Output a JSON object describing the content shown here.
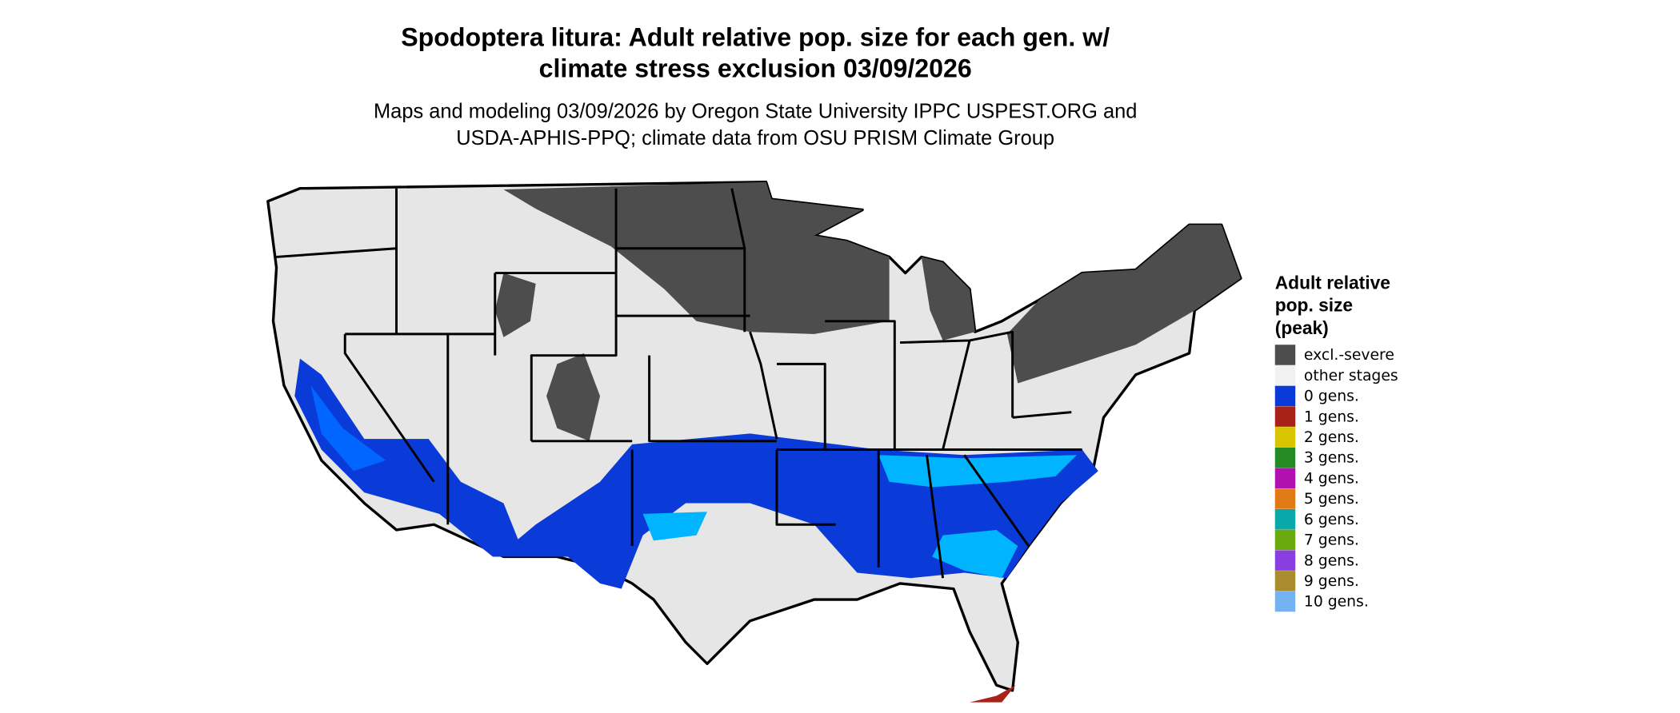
{
  "title": [
    "Spodoptera litura: Adult relative pop. size for each gen. w/",
    "climate stress exclusion 03/09/2026"
  ],
  "subtitle": [
    "Maps and modeling 03/09/2026 by Oregon State University IPPC USPEST.ORG and",
    "USDA-APHIS-PPQ; climate data from OSU PRISM Climate Group"
  ],
  "legend": {
    "title": [
      "Adult relative",
      "pop. size",
      "(peak)"
    ],
    "items": [
      {
        "label": "excl.-severe",
        "color": "#4d4d4d"
      },
      {
        "label": "other stages",
        "color": "#f2f2f2"
      },
      {
        "label": "0 gens.",
        "color": "#0a3ad8"
      },
      {
        "label": "1 gens.",
        "color": "#a8221a"
      },
      {
        "label": "2 gens.",
        "color": "#d8c400"
      },
      {
        "label": "3 gens.",
        "color": "#248a24"
      },
      {
        "label": "4 gens.",
        "color": "#b012b0"
      },
      {
        "label": "5 gens.",
        "color": "#e07a14"
      },
      {
        "label": "6 gens.",
        "color": "#0aa8a8"
      },
      {
        "label": "7 gens.",
        "color": "#6aaa10"
      },
      {
        "label": "8 gens.",
        "color": "#8a3ee0"
      },
      {
        "label": "9 gens.",
        "color": "#a88c2e"
      },
      {
        "label": "10 gens.",
        "color": "#74b2f2"
      }
    ]
  }
}
